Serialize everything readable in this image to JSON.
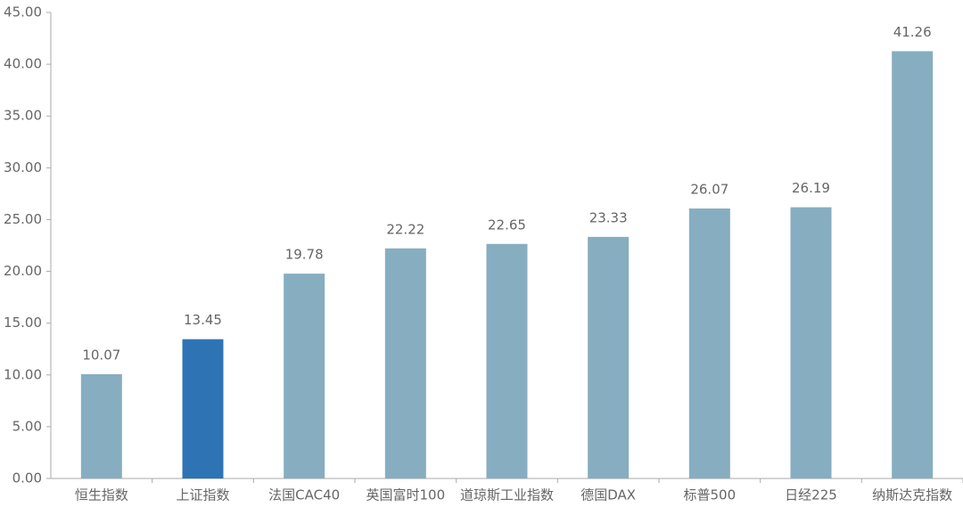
{
  "chart_data": {
    "type": "bar",
    "categories": [
      "恒生指数",
      "上证指数",
      "法国CAC40",
      "英国富时100",
      "道琼斯工业指数",
      "德国DAX",
      "标普500",
      "日经225",
      "纳斯达克指数"
    ],
    "values": [
      10.07,
      13.45,
      19.78,
      22.22,
      22.65,
      23.33,
      26.07,
      26.19,
      41.26
    ],
    "colors": [
      "#86aec0",
      "#2e74b5",
      "#86aec0",
      "#86aec0",
      "#86aec0",
      "#86aec0",
      "#86aec0",
      "#86aec0",
      "#86aec0"
    ],
    "ylim": [
      0,
      45
    ],
    "yticks": [
      {
        "value": 0,
        "label": "0.00"
      },
      {
        "value": 5,
        "label": "5.00"
      },
      {
        "value": 10,
        "label": "10.00"
      },
      {
        "value": 15,
        "label": "15.00"
      },
      {
        "value": 20,
        "label": "20.00"
      },
      {
        "value": 25,
        "label": "25.00"
      },
      {
        "value": 30,
        "label": "30.00"
      },
      {
        "value": 35,
        "label": "35.00"
      },
      {
        "value": 40,
        "label": "40.00"
      },
      {
        "value": 45,
        "label": "45.00"
      }
    ],
    "grid": false
  }
}
